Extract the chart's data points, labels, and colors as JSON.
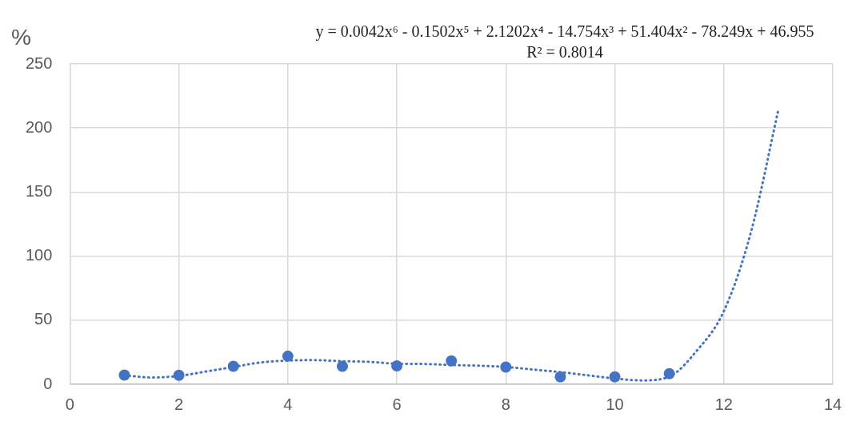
{
  "chart_data": {
    "type": "scatter",
    "ylabel": "%",
    "annotations": [
      "y = 0.0042x⁶ - 0.1502x⁵ + 2.1202x⁴ - 14.754x³ + 51.404x² - 78.249x + 46.955",
      "R² = 0.8014"
    ],
    "xlim": [
      0,
      14
    ],
    "xticks": [
      0,
      2,
      4,
      6,
      8,
      10,
      12,
      14
    ],
    "ylim": [
      0,
      250
    ],
    "yticks": [
      0,
      50,
      100,
      150,
      200,
      250
    ],
    "grid": true,
    "legend": false,
    "series": [
      {
        "type": "line",
        "color": "#4472c4",
        "marker": "none",
        "line_style": "dotted",
        "x": [
          1,
          1.5,
          2,
          2.5,
          3,
          3.5,
          4,
          4.5,
          5,
          5.5,
          6,
          6.5,
          7,
          7.5,
          8,
          8.5,
          9,
          9.5,
          10,
          10.5,
          11,
          11.5,
          12,
          12.5,
          13
        ],
        "values": [
          7,
          5.3,
          6.5,
          10,
          13.5,
          17,
          18.5,
          18.8,
          18,
          17.5,
          16,
          15.8,
          15,
          14.5,
          13.5,
          11.5,
          9.5,
          7,
          4.5,
          3,
          6,
          26,
          57,
          119,
          214
        ]
      },
      {
        "color": "#4472c4",
        "marker": "circle",
        "x": [
          1,
          2,
          3,
          4,
          5,
          6,
          7,
          8,
          9,
          10,
          11
        ],
        "values": [
          7.2,
          7,
          14,
          21.9,
          14,
          14.3,
          18.2,
          13.4,
          5.8,
          5.8,
          8.3
        ]
      }
    ]
  }
}
